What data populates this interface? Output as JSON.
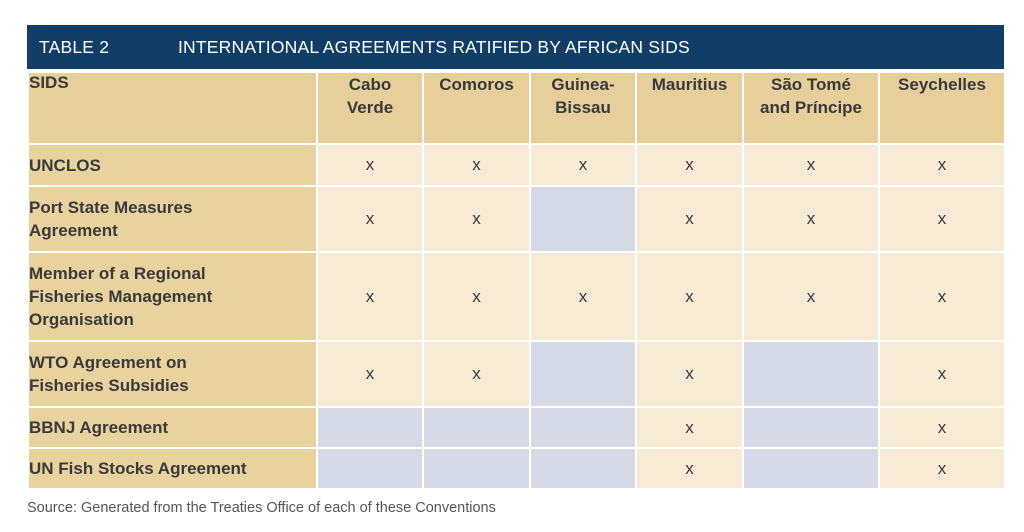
{
  "table": {
    "label": "TABLE 2",
    "title": "INTERNATIONAL AGREEMENTS RATIFIED BY AFRICAN SIDS",
    "corner_header": "SIDS",
    "columns": [
      [
        "Cabo",
        "Verde"
      ],
      [
        "Comoros"
      ],
      [
        "Guinea-",
        "Bissau"
      ],
      [
        "Mauritius"
      ],
      [
        "São Tomé",
        "and Príncipe"
      ],
      [
        "Seychelles"
      ]
    ],
    "rows": [
      {
        "label": [
          "UNCLOS"
        ],
        "cells": [
          "x",
          "x",
          "x",
          "x",
          "x",
          "x"
        ]
      },
      {
        "label": [
          "Port State Measures",
          "Agreement"
        ],
        "cells": [
          "x",
          "x",
          "",
          "x",
          "x",
          "x"
        ]
      },
      {
        "label": [
          "Member of a Regional",
          "Fisheries Management",
          "Organisation"
        ],
        "cells": [
          "x",
          "x",
          "x",
          "x",
          "x",
          "x"
        ]
      },
      {
        "label": [
          "WTO Agreement on",
          "Fisheries Subsidies"
        ],
        "cells": [
          "x",
          "x",
          "",
          "x",
          "",
          "x"
        ]
      },
      {
        "label": [
          "BBNJ Agreement"
        ],
        "cells": [
          "",
          "",
          "",
          "x",
          "",
          "x"
        ]
      },
      {
        "label": [
          "UN Fish Stocks Agreement"
        ],
        "cells": [
          "",
          "",
          "",
          "x",
          "",
          "x"
        ]
      }
    ]
  },
  "source": "Source: Generated from the Treaties Office of each of these Conventions",
  "colors": {
    "title_bar": "#123e66",
    "header": "#e7cf9b",
    "row_label": "#e8d29e",
    "cell": "#f7ebd6",
    "empty_cell": "#d5dae6"
  }
}
